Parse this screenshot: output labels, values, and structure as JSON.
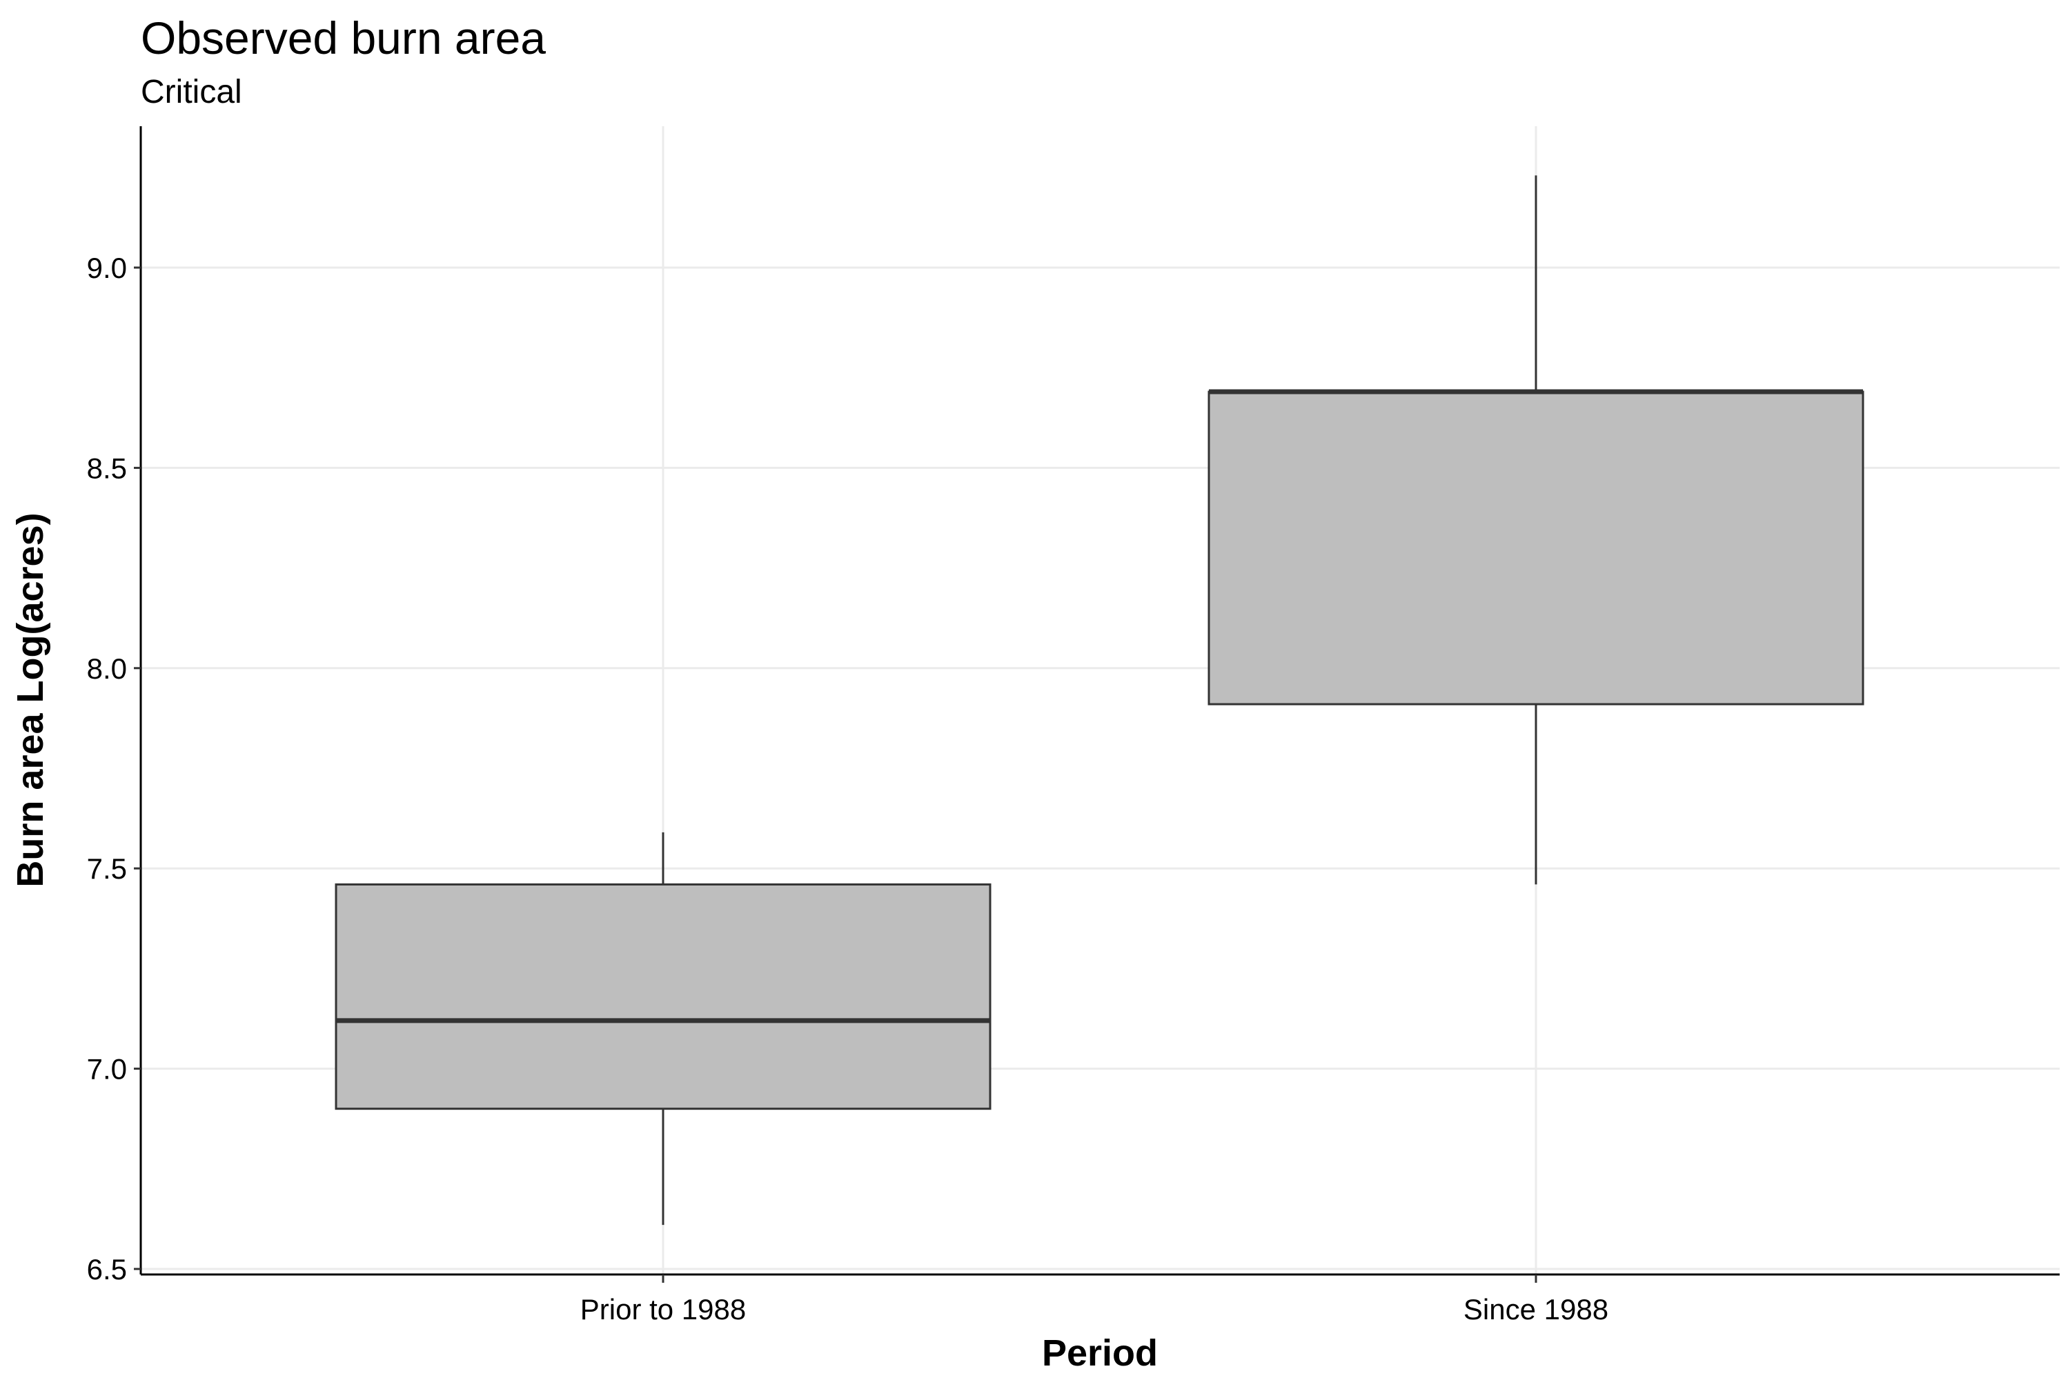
{
  "chart_data": {
    "type": "box",
    "title": "Observed burn area",
    "subtitle": "Critical",
    "xlabel": "Period",
    "ylabel": "Burn area Log(acres)",
    "categories": [
      "Prior to 1988",
      "Since 1988"
    ],
    "boxes": [
      {
        "category": "Prior to 1988",
        "whisker_low": 6.61,
        "q1": 6.9,
        "median": 7.12,
        "q3": 7.46,
        "whisker_high": 7.59
      },
      {
        "category": "Since 1988",
        "whisker_low": 7.46,
        "q1": 7.91,
        "median": 8.69,
        "q3": 8.69,
        "whisker_high": 9.23
      }
    ],
    "yticks": [
      "6.5",
      "7.0",
      "7.5",
      "8.0",
      "8.5",
      "9.0"
    ],
    "ylim": [
      6.48,
      9.35
    ],
    "grid": true,
    "box_fill": "#bebebe",
    "line_color": "#333333",
    "grid_color": "#ebebeb"
  }
}
